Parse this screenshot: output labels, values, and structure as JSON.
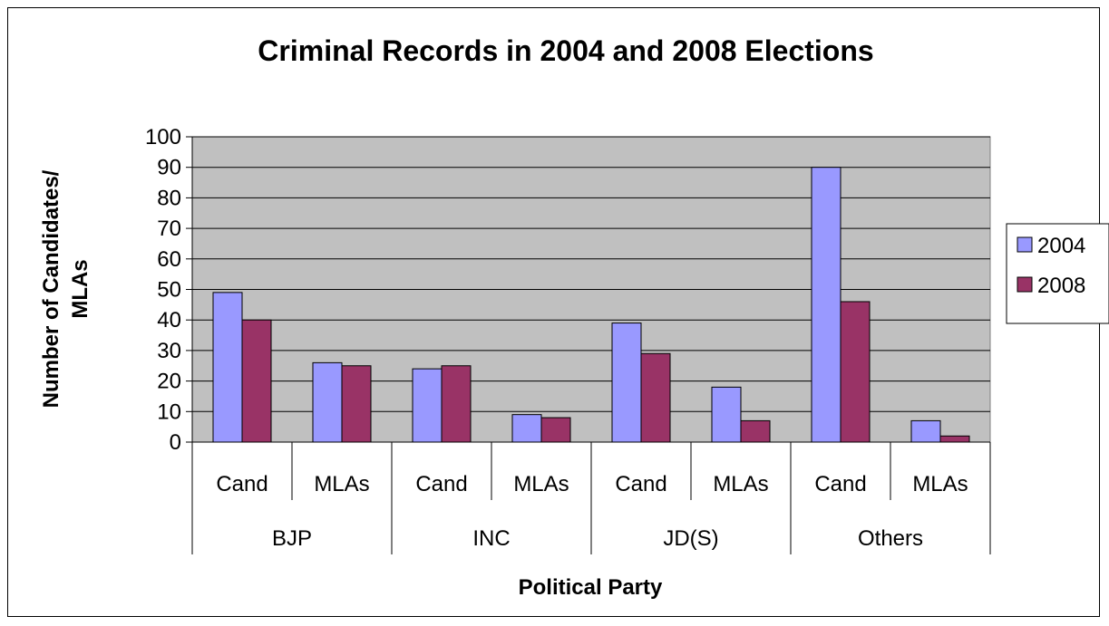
{
  "chart_data": {
    "type": "bar",
    "title": "Criminal Records in 2004 and 2008 Elections",
    "ylabel_lines": [
      "Number of Candidates/",
      "MLAs"
    ],
    "xlabel": "Political Party",
    "ylim": [
      0,
      100
    ],
    "yticks": [
      0,
      10,
      20,
      30,
      40,
      50,
      60,
      70,
      80,
      90,
      100
    ],
    "grid": true,
    "legend_position": "right",
    "groups": [
      {
        "label": "BJP",
        "categories": [
          "Cand",
          "MLAs"
        ]
      },
      {
        "label": "INC",
        "categories": [
          "Cand",
          "MLAs"
        ]
      },
      {
        "label": "JD(S)",
        "categories": [
          "Cand",
          "MLAs"
        ]
      },
      {
        "label": "Others",
        "categories": [
          "Cand",
          "MLAs"
        ]
      }
    ],
    "series": [
      {
        "name": "2004",
        "color": "#9999ff",
        "values": [
          49,
          26,
          24,
          9,
          39,
          18,
          90,
          7
        ]
      },
      {
        "name": "2008",
        "color": "#993366",
        "values": [
          40,
          25,
          25,
          8,
          29,
          7,
          46,
          2
        ]
      }
    ],
    "plot_background": "#c0c0c0"
  }
}
